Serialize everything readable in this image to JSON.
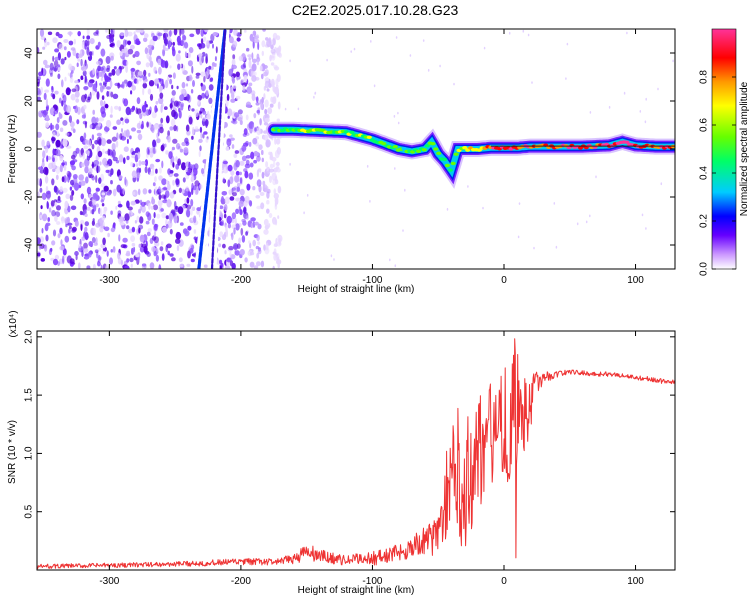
{
  "page": {
    "title": "C2E2.2025.017.10.28.G23"
  },
  "chart_data": [
    {
      "type": "heatmap",
      "xlabel": "Height of straight line (km)",
      "ylabel": "Frequency (Hz)",
      "xlim": [
        -355,
        130
      ],
      "ylim": [
        -50,
        50
      ],
      "xticks": [
        -300,
        -200,
        -100,
        0,
        100
      ],
      "yticks": [
        -40,
        -20,
        0,
        20,
        40
      ],
      "colorbar": {
        "label": "Normalized spectral amplitude",
        "range": [
          0,
          1
        ],
        "ticks": [
          0.0,
          0.2,
          0.4,
          0.6,
          0.8
        ],
        "tick_labels": [
          "0.0",
          "0.2",
          "0.4",
          "0.6",
          "0.8"
        ],
        "colors": [
          "#ffffff",
          "#cc99ff",
          "#6600ff",
          "#0000ff",
          "#00ccff",
          "#00ff66",
          "#66ff00",
          "#ffff00",
          "#ff9900",
          "#ff0000",
          "#ff0099",
          "#ff3399"
        ]
      },
      "noise_region": {
        "x": [
          -355,
          -170
        ],
        "y": [
          -50,
          50
        ]
      },
      "interference_streaks": [
        {
          "x": [
            -232,
            -212
          ],
          "y": [
            -50,
            50
          ]
        },
        {
          "x": [
            -222,
            -212
          ],
          "y": [
            -50,
            50
          ]
        }
      ],
      "signal_trace": {
        "x": [
          -175,
          -160,
          -140,
          -120,
          -100,
          -90,
          -80,
          -70,
          -60,
          -55,
          -50,
          -45,
          -40,
          -35,
          -30,
          -20,
          -10,
          0,
          10,
          20,
          40,
          60,
          80,
          90,
          100,
          115,
          130
        ],
        "y": [
          8,
          8,
          7.5,
          7,
          4,
          2,
          0,
          -1,
          0,
          3,
          -2,
          -5,
          -9,
          0,
          0,
          0,
          0.5,
          0.5,
          0.5,
          1,
          1,
          1,
          1.5,
          3,
          1.5,
          1,
          1
        ],
        "amplitude": [
          0.45,
          0.45,
          0.5,
          0.5,
          0.45,
          0.45,
          0.4,
          0.4,
          0.45,
          0.4,
          0.4,
          0.4,
          0.35,
          0.5,
          0.5,
          0.75,
          0.85,
          0.9,
          0.85,
          0.85,
          0.85,
          0.85,
          0.85,
          0.95,
          0.85,
          0.85,
          0.85
        ]
      }
    },
    {
      "type": "line",
      "xlabel": "Height of straight line (km)",
      "ylabel": "SNR (10 * v/v)",
      "y_multiplier": "(x10⁴)",
      "xlim": [
        -355,
        130
      ],
      "ylim": [
        0,
        2.05
      ],
      "xticks": [
        -300,
        -200,
        -100,
        0,
        100
      ],
      "yticks": [
        0.5,
        1.0,
        1.5,
        2.0
      ],
      "ytick_labels": [
        "0.5",
        "1.0",
        "1.5",
        "2.0"
      ],
      "grid": false,
      "series": [
        {
          "color": "#ee3333",
          "x": [
            -355,
            -300,
            -250,
            -200,
            -170,
            -160,
            -150,
            -140,
            -130,
            -120,
            -110,
            -100,
            -90,
            -80,
            -70,
            -60,
            -50,
            -45,
            -40,
            -35,
            -30,
            -25,
            -20,
            -15,
            -10,
            -5,
            0,
            5,
            10,
            15,
            20,
            25,
            30,
            40,
            50,
            60,
            70,
            80,
            90,
            100,
            110,
            120,
            130
          ],
          "y": [
            0.03,
            0.04,
            0.05,
            0.07,
            0.07,
            0.1,
            0.15,
            0.12,
            0.1,
            0.08,
            0.1,
            0.1,
            0.12,
            0.15,
            0.2,
            0.25,
            0.3,
            0.6,
            0.75,
            0.9,
            0.65,
            1.0,
            1.0,
            1.1,
            1.15,
            1.25,
            1.3,
            1.2,
            1.4,
            1.3,
            1.45,
            1.6,
            1.65,
            1.68,
            1.7,
            1.69,
            1.68,
            1.68,
            1.67,
            1.65,
            1.64,
            1.62,
            1.61
          ],
          "spread": [
            0.02,
            0.02,
            0.02,
            0.03,
            0.03,
            0.05,
            0.08,
            0.06,
            0.05,
            0.04,
            0.05,
            0.06,
            0.07,
            0.08,
            0.1,
            0.12,
            0.18,
            0.35,
            0.45,
            0.55,
            0.6,
            0.65,
            0.6,
            0.5,
            0.45,
            0.4,
            0.5,
            0.6,
            0.5,
            0.35,
            0.25,
            0.1,
            0.05,
            0.03,
            0.02,
            0.02,
            0.02,
            0.02,
            0.02,
            0.02,
            0.02,
            0.02,
            0.02
          ]
        }
      ]
    }
  ]
}
